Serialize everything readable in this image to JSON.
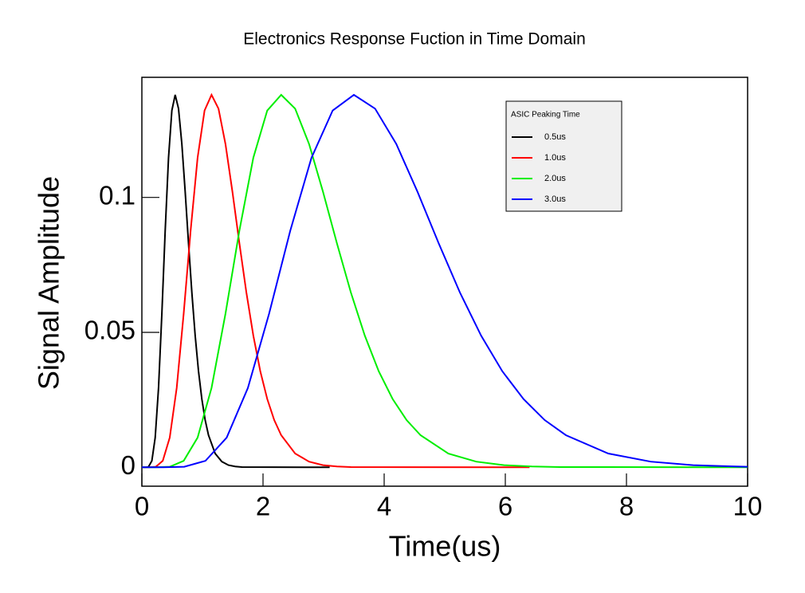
{
  "chart_data": {
    "type": "line",
    "title": "Electronics Response Fuction in Time Domain",
    "x_label": "Time(us)",
    "y_label": "Signal Amplitude",
    "xlim": [
      0,
      10
    ],
    "xticks": [
      0,
      2,
      4,
      6,
      8,
      10
    ],
    "ylim": [
      -0.007,
      0.1445
    ],
    "yticks": [
      0,
      0.05,
      0.1
    ],
    "legend_title": "ASIC Peaking Time",
    "legend_position": "top right",
    "series": [
      {
        "name": "0.5us",
        "color": "#000000",
        "x": [
          0,
          0.055,
          0.11,
          0.165,
          0.22,
          0.275,
          0.33,
          0.385,
          0.44,
          0.495,
          0.55,
          0.605,
          0.66,
          0.715,
          0.77,
          0.825,
          0.88,
          0.935,
          0.99,
          1.045,
          1.1,
          1.21,
          1.32,
          1.43,
          1.54,
          1.65,
          3.1
        ],
        "values": [
          0,
          0,
          0.0002,
          0.0024,
          0.011,
          0.0294,
          0.0569,
          0.0877,
          0.1147,
          0.1322,
          0.138,
          0.1329,
          0.1198,
          0.1021,
          0.083,
          0.0648,
          0.0488,
          0.0356,
          0.0253,
          0.0175,
          0.0119,
          0.0051,
          0.0021,
          0.0008,
          0.0003,
          0.0001,
          0
        ]
      },
      {
        "name": "1.0us",
        "color": "#ff0000",
        "x": [
          0,
          0.115,
          0.23,
          0.345,
          0.46,
          0.575,
          0.69,
          0.805,
          0.92,
          1.035,
          1.15,
          1.265,
          1.38,
          1.495,
          1.61,
          1.725,
          1.84,
          1.955,
          2.07,
          2.185,
          2.3,
          2.53,
          2.76,
          2.99,
          3.22,
          3.45,
          6.4
        ],
        "values": [
          0,
          0,
          0.0002,
          0.0024,
          0.011,
          0.0294,
          0.0569,
          0.0877,
          0.1147,
          0.1322,
          0.138,
          0.1329,
          0.1198,
          0.1021,
          0.083,
          0.0648,
          0.0488,
          0.0356,
          0.0253,
          0.0175,
          0.0119,
          0.0051,
          0.0021,
          0.0008,
          0.0003,
          0.0001,
          0
        ]
      },
      {
        "name": "2.0us",
        "color": "#00ee00",
        "x": [
          0,
          0.23,
          0.46,
          0.69,
          0.92,
          1.15,
          1.38,
          1.61,
          1.84,
          2.07,
          2.3,
          2.53,
          2.76,
          2.99,
          3.22,
          3.45,
          3.68,
          3.91,
          4.14,
          4.37,
          4.6,
          5.06,
          5.52,
          5.98,
          6.44,
          6.9,
          10
        ],
        "values": [
          0,
          0,
          0.0002,
          0.0024,
          0.011,
          0.0294,
          0.0569,
          0.0877,
          0.1147,
          0.1322,
          0.138,
          0.1329,
          0.1198,
          0.1021,
          0.083,
          0.0648,
          0.0488,
          0.0356,
          0.0253,
          0.0175,
          0.0119,
          0.0051,
          0.0021,
          0.0008,
          0.0003,
          0.0001,
          0
        ]
      },
      {
        "name": "3.0us",
        "color": "#0000ff",
        "x": [
          0,
          0.35,
          0.7,
          1.05,
          1.4,
          1.75,
          2.1,
          2.45,
          2.8,
          3.15,
          3.5,
          3.85,
          4.2,
          4.55,
          4.9,
          5.25,
          5.6,
          5.95,
          6.3,
          6.65,
          7.0,
          7.7,
          8.4,
          9.1,
          9.8,
          10
        ],
        "values": [
          0,
          0,
          0.0002,
          0.0024,
          0.011,
          0.0294,
          0.0569,
          0.0877,
          0.1147,
          0.1322,
          0.138,
          0.1329,
          0.1198,
          0.1021,
          0.083,
          0.0648,
          0.0488,
          0.0356,
          0.0253,
          0.0175,
          0.0119,
          0.0051,
          0.0021,
          0.0008,
          0.0003,
          0.0002
        ]
      }
    ]
  }
}
